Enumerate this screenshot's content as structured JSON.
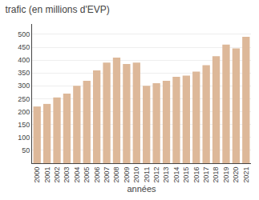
{
  "chart_data": {
    "type": "bar",
    "title": "trafic (en millions d'EVP)",
    "xlabel": "années",
    "categories": [
      "2000",
      "2001",
      "2002",
      "2003",
      "2004",
      "2005",
      "2006",
      "2007",
      "2008",
      "2009",
      "2010",
      "2011",
      "2012",
      "2013",
      "2014",
      "2015",
      "2016",
      "2017",
      "2018",
      "2019",
      "2020",
      "2021"
    ],
    "values": [
      220,
      230,
      255,
      270,
      300,
      320,
      360,
      390,
      410,
      385,
      390,
      300,
      310,
      320,
      335,
      340,
      355,
      380,
      415,
      460,
      445,
      490
    ],
    "color": "#ddb899",
    "ylim": [
      0,
      540
    ],
    "yticks": [
      50,
      100,
      150,
      200,
      250,
      300,
      350,
      400,
      450,
      500
    ],
    "grid": true
  }
}
